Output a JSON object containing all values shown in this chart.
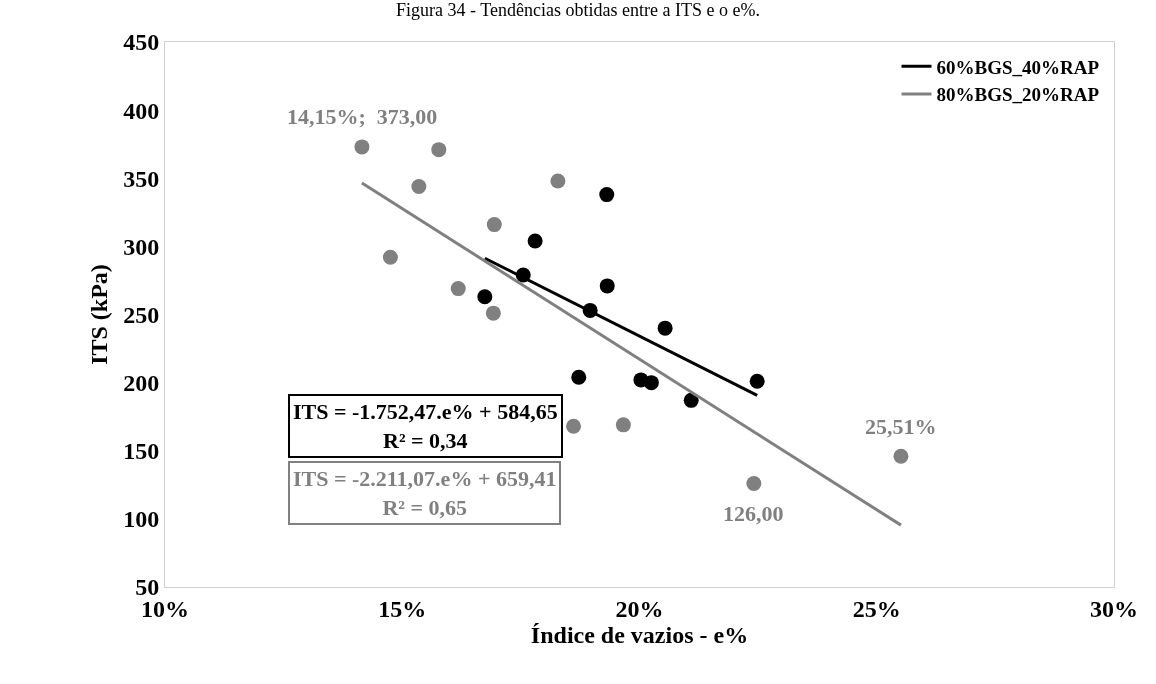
{
  "chart_data": {
    "type": "scatter",
    "title": "Figura 34 - Tendências obtidas entre a ITS e o e%.",
    "xlabel": "Índice de vazios - e%",
    "ylabel": "ITS (kPa)",
    "xlim": [
      10,
      30
    ],
    "xticks": [
      {
        "value": 10,
        "label": "10%"
      },
      {
        "value": 15,
        "label": "15%"
      },
      {
        "value": 20,
        "label": "20%"
      },
      {
        "value": 25,
        "label": "25%"
      },
      {
        "value": 30,
        "label": "30%"
      }
    ],
    "ylim": [
      50,
      450
    ],
    "yticks": [
      50,
      100,
      150,
      200,
      250,
      300,
      350,
      400,
      450
    ],
    "legend": "top right",
    "series": [
      {
        "color": "#000000",
        "marker": "circle",
        "x": [
          19.31,
          17.8,
          17.55,
          19.32,
          16.74,
          18.96,
          20.54,
          18.72,
          20.03,
          20.25,
          21.09,
          22.48
        ],
        "values": [
          338,
          304,
          279,
          271,
          263,
          253,
          240,
          204,
          202,
          200,
          187,
          201
        ]
      },
      {
        "color": "#808080",
        "marker": "circle",
        "x": [
          14.15,
          15.77,
          15.35,
          18.28,
          16.94,
          14.75,
          16.18,
          16.92,
          18.61,
          19.66,
          22.41,
          25.51
        ],
        "values": [
          373,
          371,
          344,
          348,
          316,
          292,
          269,
          251,
          168,
          169,
          126,
          146
        ]
      },
      {
        "type": "line",
        "name": "60%BGS_40%RAP",
        "color": "#000000",
        "x": [
          16.74,
          22.48
        ],
        "values": [
          291.3,
          190.7
        ]
      },
      {
        "type": "line",
        "name": "80%BGS_20%RAP",
        "color": "#808080",
        "x": [
          14.15,
          25.51
        ],
        "values": [
          346.5,
          95.4
        ]
      }
    ],
    "annotations": [
      {
        "text": "14,15%;  373,00",
        "x": 14.15,
        "y": 373
      },
      {
        "text": "126,00",
        "x": 22.41,
        "y": 126
      },
      {
        "text": "25,51%",
        "x": 25.51,
        "y": 146
      },
      "ITS = -1.752,47.e% + 584,65\nR² = 0,34",
      "ITS = -2.211,07.e% + 659,41\nR² = 0,65"
    ]
  }
}
